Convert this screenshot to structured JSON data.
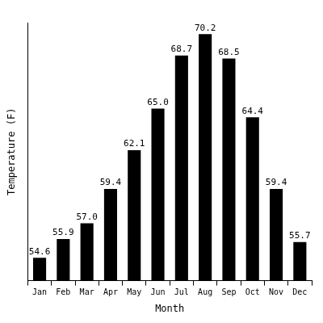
{
  "chart_data": {
    "type": "bar",
    "x_label": "Month",
    "y_label": "Temperature (F)",
    "categories": [
      "Jan",
      "Feb",
      "Mar",
      "Apr",
      "May",
      "Jun",
      "Jul",
      "Aug",
      "Sep",
      "Oct",
      "Nov",
      "Dec"
    ],
    "values": [
      54.6,
      55.9,
      57.0,
      59.4,
      62.1,
      65.0,
      68.7,
      70.2,
      68.5,
      64.4,
      59.4,
      55.7
    ],
    "value_labels": [
      "54.6",
      "55.9",
      "57.0",
      "59.4",
      "62.1",
      "65.0",
      "68.7",
      "70.2",
      "68.5",
      "64.4",
      "59.4",
      "55.7"
    ],
    "color": "#000000",
    "ylim": [
      53,
      71
    ],
    "grid": false,
    "data_labels": true,
    "tick_labels": "x"
  }
}
